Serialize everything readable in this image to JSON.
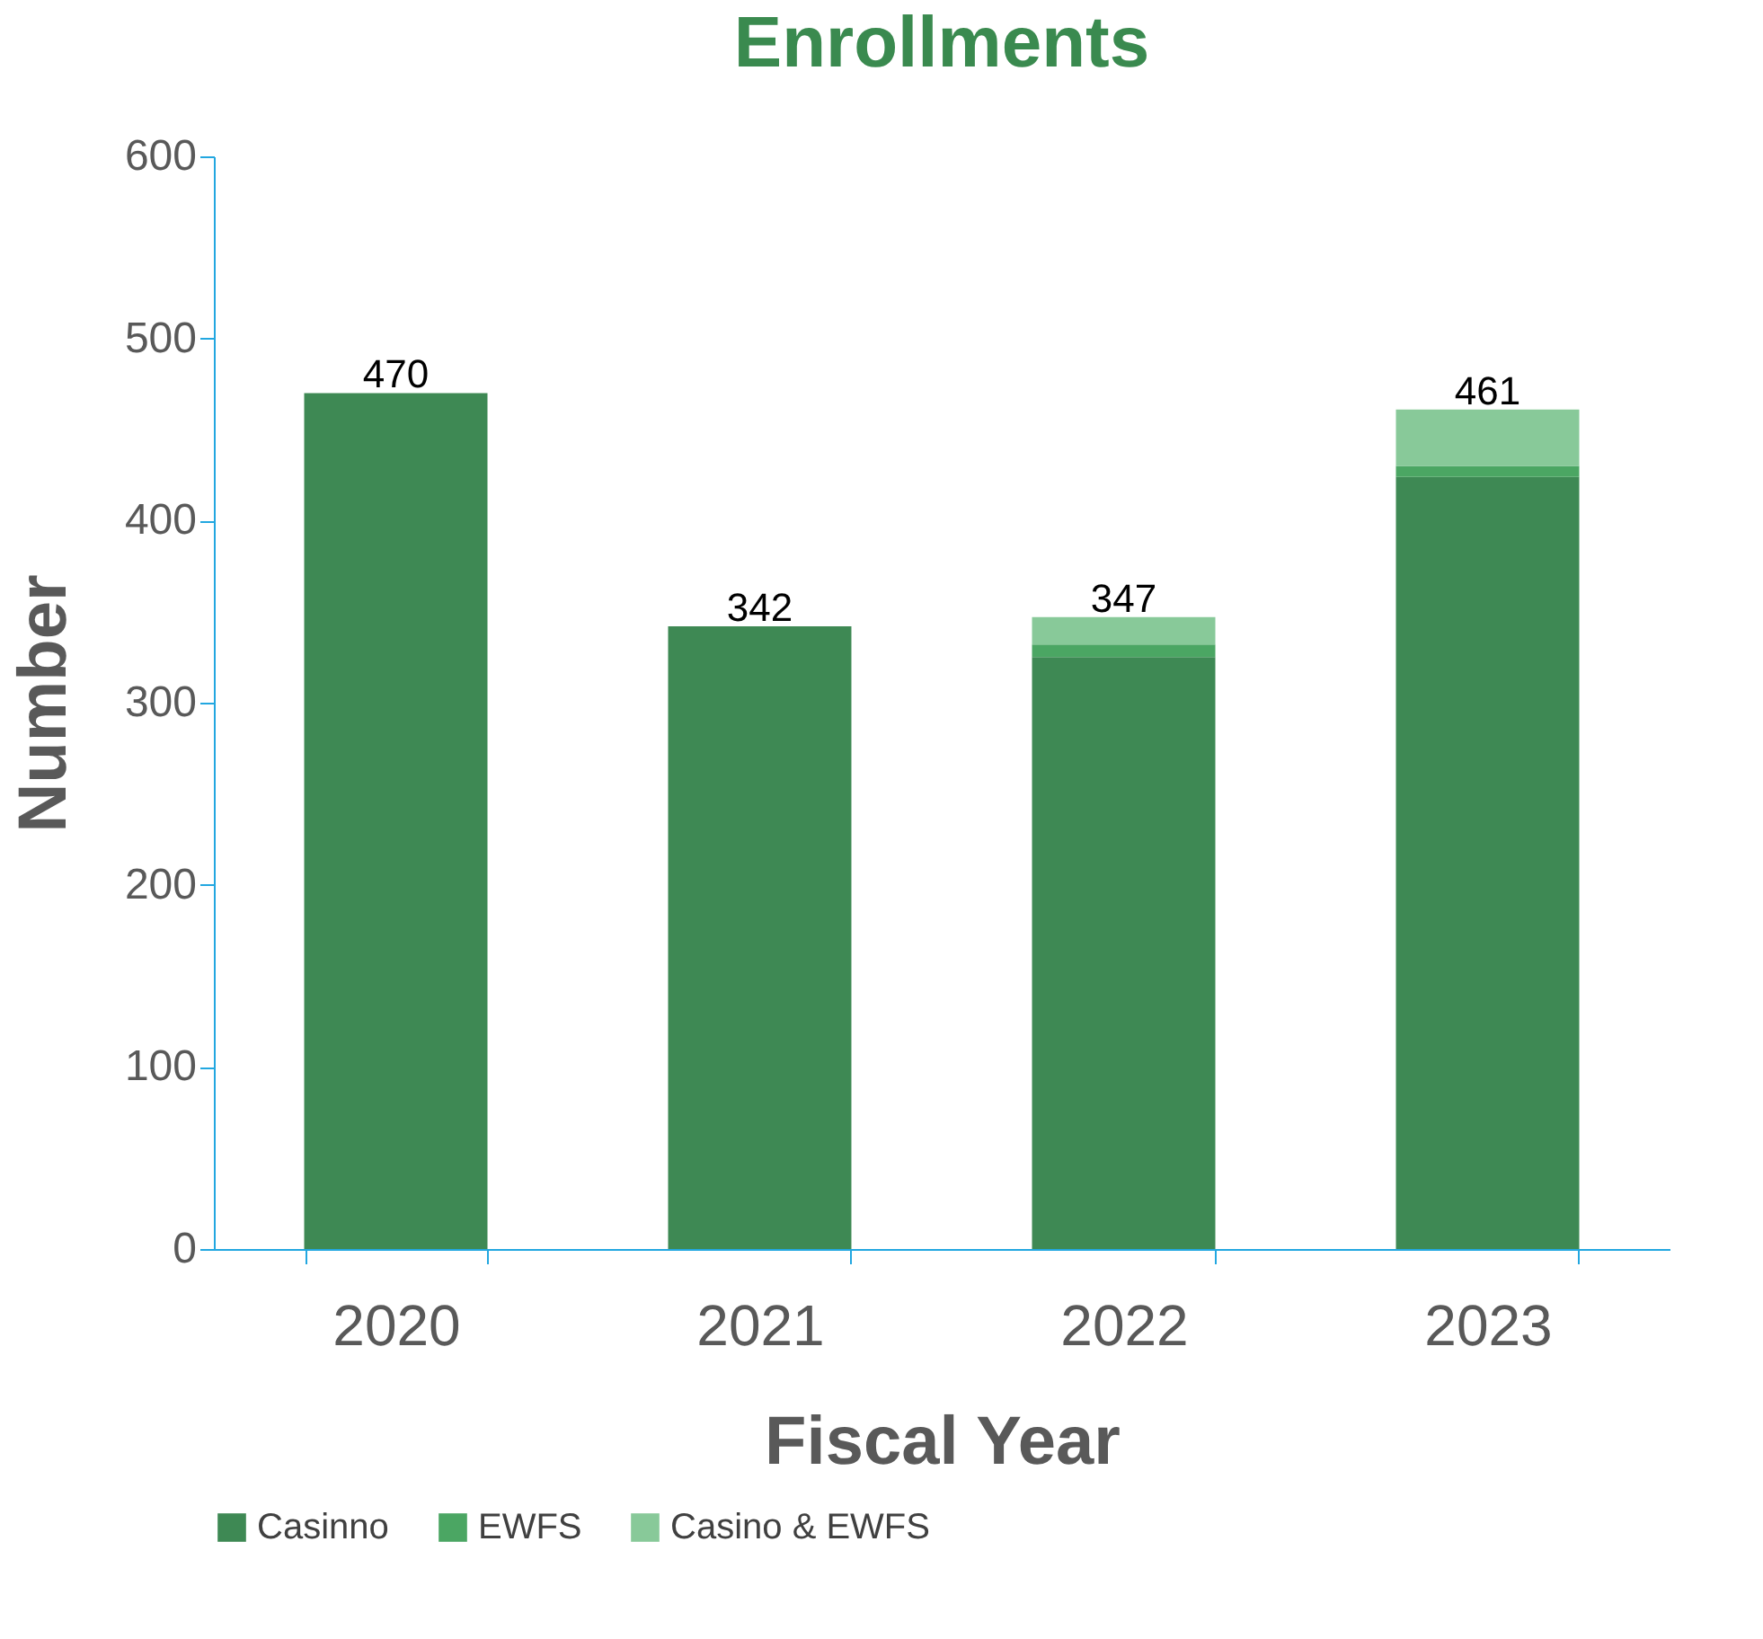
{
  "chart_data": {
    "type": "bar",
    "title": "Enrollments",
    "xlabel": "Fiscal Year",
    "ylabel": "Number",
    "categories": [
      "2020",
      "2021",
      "2022",
      "2023"
    ],
    "series": [
      {
        "name": "Casinno",
        "color": "#3e8954",
        "values": [
          470,
          342,
          325,
          424
        ]
      },
      {
        "name": "EWFS",
        "color": "#4ba663",
        "values": [
          0,
          0,
          7,
          6
        ]
      },
      {
        "name": "Casino & EWFS",
        "color": "#88c999",
        "values": [
          0,
          0,
          15,
          31
        ]
      }
    ],
    "stacked": true,
    "totals": [
      "470",
      "342",
      "347",
      "461"
    ],
    "ylim": [
      0,
      600
    ],
    "yticks": [
      0,
      100,
      200,
      300,
      400,
      500,
      600
    ],
    "grid": false,
    "legend": "bottom"
  }
}
